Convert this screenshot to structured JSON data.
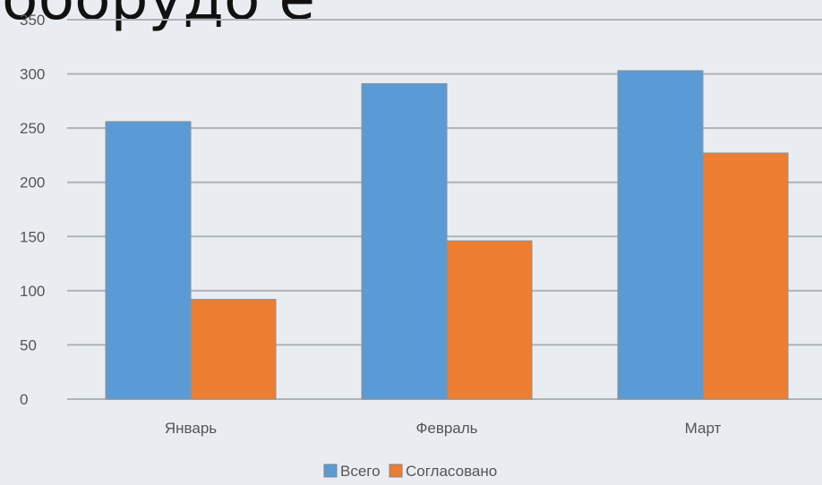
{
  "heading_fragment": "оборудо е",
  "chart_data": {
    "type": "bar",
    "title": "",
    "xlabel": "",
    "ylabel": "",
    "categories": [
      "Январь",
      "Февраль",
      "Март"
    ],
    "series": [
      {
        "name": "Всего",
        "values": [
          256,
          291,
          303
        ],
        "color": "#5b9bd5"
      },
      {
        "name": "Согласовано",
        "values": [
          92,
          146,
          227
        ],
        "color": "#ed7d31"
      }
    ],
    "ylim": [
      0,
      350
    ],
    "yticks": [
      "0",
      "50",
      "100",
      "150",
      "200",
      "250",
      "300",
      "350"
    ],
    "grid": true,
    "legend_position": "bottom"
  }
}
